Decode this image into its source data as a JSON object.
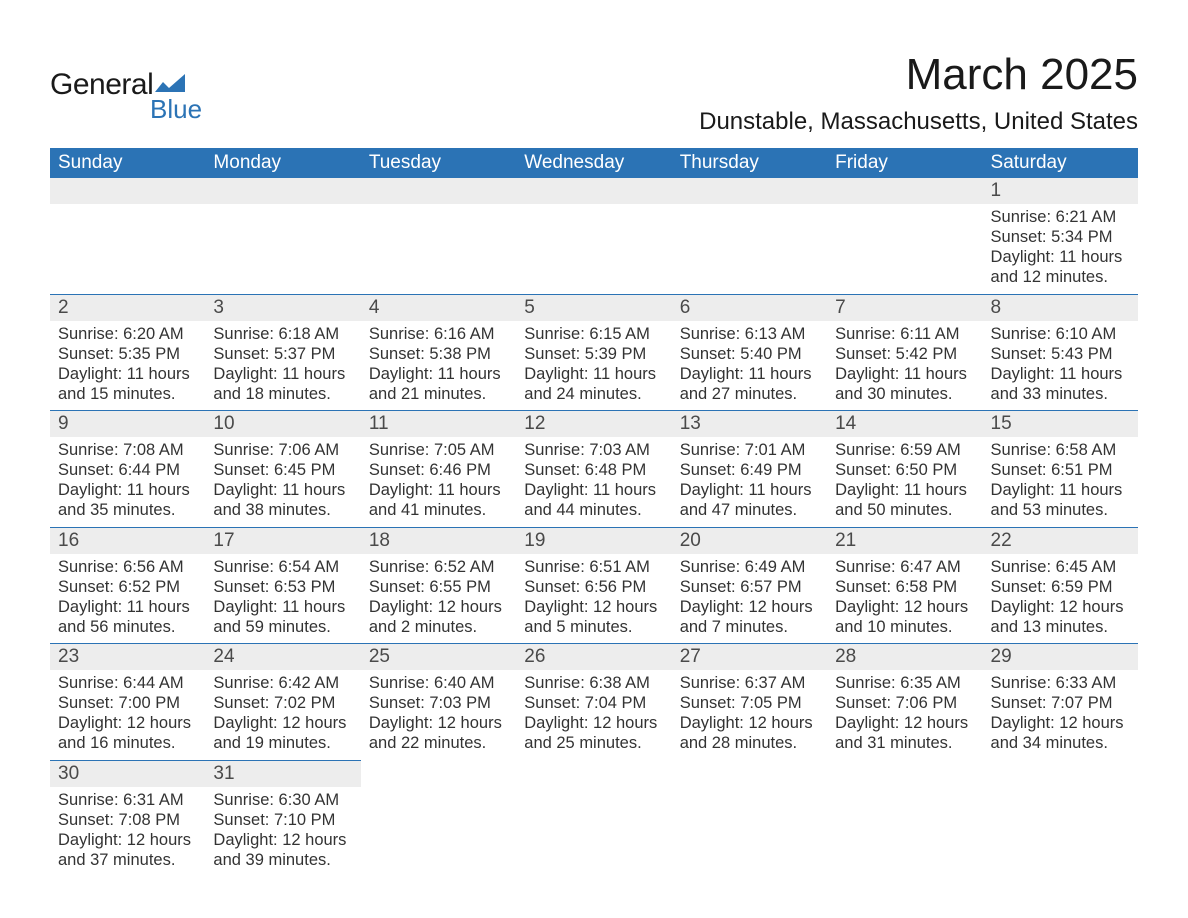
{
  "brand": {
    "word1": "General",
    "word2": "Blue",
    "brand_color": "#2b73b5",
    "text_color": "#1a1a1a"
  },
  "title": "March 2025",
  "location": "Dunstable, Massachusetts, United States",
  "colors": {
    "header_bg": "#2b73b5",
    "header_text": "#ffffff",
    "daynum_bg": "#ededed",
    "daynum_text": "#4a4a4a",
    "body_text": "#333333",
    "row_border": "#2b73b5",
    "page_bg": "#ffffff"
  },
  "typography": {
    "title_fontsize": 44,
    "location_fontsize": 24,
    "header_fontsize": 19,
    "daynum_fontsize": 19,
    "cell_fontsize": 16.5,
    "logo_fontsize": 30
  },
  "day_headers": [
    "Sunday",
    "Monday",
    "Tuesday",
    "Wednesday",
    "Thursday",
    "Friday",
    "Saturday"
  ],
  "weeks": [
    [
      null,
      null,
      null,
      null,
      null,
      null,
      {
        "n": "1",
        "sunrise": "Sunrise: 6:21 AM",
        "sunset": "Sunset: 5:34 PM",
        "daylight1": "Daylight: 11 hours",
        "daylight2": "and 12 minutes."
      }
    ],
    [
      {
        "n": "2",
        "sunrise": "Sunrise: 6:20 AM",
        "sunset": "Sunset: 5:35 PM",
        "daylight1": "Daylight: 11 hours",
        "daylight2": "and 15 minutes."
      },
      {
        "n": "3",
        "sunrise": "Sunrise: 6:18 AM",
        "sunset": "Sunset: 5:37 PM",
        "daylight1": "Daylight: 11 hours",
        "daylight2": "and 18 minutes."
      },
      {
        "n": "4",
        "sunrise": "Sunrise: 6:16 AM",
        "sunset": "Sunset: 5:38 PM",
        "daylight1": "Daylight: 11 hours",
        "daylight2": "and 21 minutes."
      },
      {
        "n": "5",
        "sunrise": "Sunrise: 6:15 AM",
        "sunset": "Sunset: 5:39 PM",
        "daylight1": "Daylight: 11 hours",
        "daylight2": "and 24 minutes."
      },
      {
        "n": "6",
        "sunrise": "Sunrise: 6:13 AM",
        "sunset": "Sunset: 5:40 PM",
        "daylight1": "Daylight: 11 hours",
        "daylight2": "and 27 minutes."
      },
      {
        "n": "7",
        "sunrise": "Sunrise: 6:11 AM",
        "sunset": "Sunset: 5:42 PM",
        "daylight1": "Daylight: 11 hours",
        "daylight2": "and 30 minutes."
      },
      {
        "n": "8",
        "sunrise": "Sunrise: 6:10 AM",
        "sunset": "Sunset: 5:43 PM",
        "daylight1": "Daylight: 11 hours",
        "daylight2": "and 33 minutes."
      }
    ],
    [
      {
        "n": "9",
        "sunrise": "Sunrise: 7:08 AM",
        "sunset": "Sunset: 6:44 PM",
        "daylight1": "Daylight: 11 hours",
        "daylight2": "and 35 minutes."
      },
      {
        "n": "10",
        "sunrise": "Sunrise: 7:06 AM",
        "sunset": "Sunset: 6:45 PM",
        "daylight1": "Daylight: 11 hours",
        "daylight2": "and 38 minutes."
      },
      {
        "n": "11",
        "sunrise": "Sunrise: 7:05 AM",
        "sunset": "Sunset: 6:46 PM",
        "daylight1": "Daylight: 11 hours",
        "daylight2": "and 41 minutes."
      },
      {
        "n": "12",
        "sunrise": "Sunrise: 7:03 AM",
        "sunset": "Sunset: 6:48 PM",
        "daylight1": "Daylight: 11 hours",
        "daylight2": "and 44 minutes."
      },
      {
        "n": "13",
        "sunrise": "Sunrise: 7:01 AM",
        "sunset": "Sunset: 6:49 PM",
        "daylight1": "Daylight: 11 hours",
        "daylight2": "and 47 minutes."
      },
      {
        "n": "14",
        "sunrise": "Sunrise: 6:59 AM",
        "sunset": "Sunset: 6:50 PM",
        "daylight1": "Daylight: 11 hours",
        "daylight2": "and 50 minutes."
      },
      {
        "n": "15",
        "sunrise": "Sunrise: 6:58 AM",
        "sunset": "Sunset: 6:51 PM",
        "daylight1": "Daylight: 11 hours",
        "daylight2": "and 53 minutes."
      }
    ],
    [
      {
        "n": "16",
        "sunrise": "Sunrise: 6:56 AM",
        "sunset": "Sunset: 6:52 PM",
        "daylight1": "Daylight: 11 hours",
        "daylight2": "and 56 minutes."
      },
      {
        "n": "17",
        "sunrise": "Sunrise: 6:54 AM",
        "sunset": "Sunset: 6:53 PM",
        "daylight1": "Daylight: 11 hours",
        "daylight2": "and 59 minutes."
      },
      {
        "n": "18",
        "sunrise": "Sunrise: 6:52 AM",
        "sunset": "Sunset: 6:55 PM",
        "daylight1": "Daylight: 12 hours",
        "daylight2": "and 2 minutes."
      },
      {
        "n": "19",
        "sunrise": "Sunrise: 6:51 AM",
        "sunset": "Sunset: 6:56 PM",
        "daylight1": "Daylight: 12 hours",
        "daylight2": "and 5 minutes."
      },
      {
        "n": "20",
        "sunrise": "Sunrise: 6:49 AM",
        "sunset": "Sunset: 6:57 PM",
        "daylight1": "Daylight: 12 hours",
        "daylight2": "and 7 minutes."
      },
      {
        "n": "21",
        "sunrise": "Sunrise: 6:47 AM",
        "sunset": "Sunset: 6:58 PM",
        "daylight1": "Daylight: 12 hours",
        "daylight2": "and 10 minutes."
      },
      {
        "n": "22",
        "sunrise": "Sunrise: 6:45 AM",
        "sunset": "Sunset: 6:59 PM",
        "daylight1": "Daylight: 12 hours",
        "daylight2": "and 13 minutes."
      }
    ],
    [
      {
        "n": "23",
        "sunrise": "Sunrise: 6:44 AM",
        "sunset": "Sunset: 7:00 PM",
        "daylight1": "Daylight: 12 hours",
        "daylight2": "and 16 minutes."
      },
      {
        "n": "24",
        "sunrise": "Sunrise: 6:42 AM",
        "sunset": "Sunset: 7:02 PM",
        "daylight1": "Daylight: 12 hours",
        "daylight2": "and 19 minutes."
      },
      {
        "n": "25",
        "sunrise": "Sunrise: 6:40 AM",
        "sunset": "Sunset: 7:03 PM",
        "daylight1": "Daylight: 12 hours",
        "daylight2": "and 22 minutes."
      },
      {
        "n": "26",
        "sunrise": "Sunrise: 6:38 AM",
        "sunset": "Sunset: 7:04 PM",
        "daylight1": "Daylight: 12 hours",
        "daylight2": "and 25 minutes."
      },
      {
        "n": "27",
        "sunrise": "Sunrise: 6:37 AM",
        "sunset": "Sunset: 7:05 PM",
        "daylight1": "Daylight: 12 hours",
        "daylight2": "and 28 minutes."
      },
      {
        "n": "28",
        "sunrise": "Sunrise: 6:35 AM",
        "sunset": "Sunset: 7:06 PM",
        "daylight1": "Daylight: 12 hours",
        "daylight2": "and 31 minutes."
      },
      {
        "n": "29",
        "sunrise": "Sunrise: 6:33 AM",
        "sunset": "Sunset: 7:07 PM",
        "daylight1": "Daylight: 12 hours",
        "daylight2": "and 34 minutes."
      }
    ],
    [
      {
        "n": "30",
        "sunrise": "Sunrise: 6:31 AM",
        "sunset": "Sunset: 7:08 PM",
        "daylight1": "Daylight: 12 hours",
        "daylight2": "and 37 minutes."
      },
      {
        "n": "31",
        "sunrise": "Sunrise: 6:30 AM",
        "sunset": "Sunset: 7:10 PM",
        "daylight1": "Daylight: 12 hours",
        "daylight2": "and 39 minutes."
      },
      null,
      null,
      null,
      null,
      null
    ]
  ]
}
